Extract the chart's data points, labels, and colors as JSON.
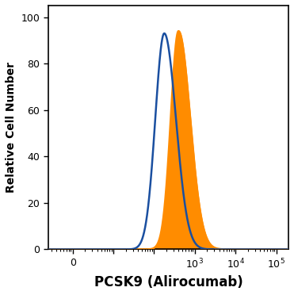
{
  "ylabel": "Relative Cell Number",
  "xlabel": "PCSK9 (Alirocumab)",
  "ylim": [
    0,
    105
  ],
  "xlim_log": [
    -0.6,
    5.3
  ],
  "yticks": [
    0,
    20,
    40,
    60,
    80,
    100
  ],
  "blue_peak_log": 2.25,
  "blue_peak_height": 93,
  "blue_sigma_log": 0.22,
  "orange_peak_log": 2.6,
  "orange_peak_height": 94,
  "orange_sigma_log": 0.19,
  "blue_color": "#1a4fa0",
  "orange_color": "#FF8C00",
  "orange_fill_color": "#FF8C00",
  "background_color": "#ffffff",
  "line_width": 1.8,
  "xlabel_fontsize": 12,
  "ylabel_fontsize": 10,
  "xtick_positions": [
    1,
    10,
    100,
    1000,
    10000,
    100000
  ],
  "xtick_labels": [
    "0",
    "",
    "",
    "10$^3$",
    "10$^4$",
    "10$^5$"
  ]
}
